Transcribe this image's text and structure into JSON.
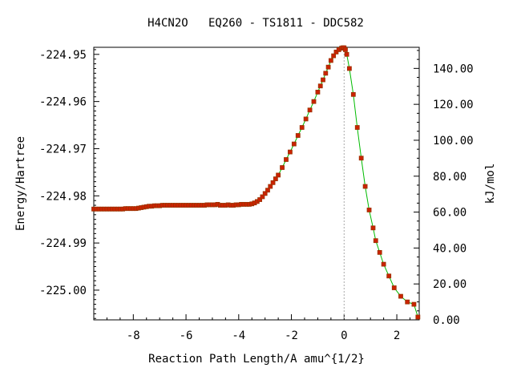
{
  "chart_data": {
    "type": "line",
    "title": "H4CN2O   EQ260 - TS1811 - DDC582",
    "xlabel": "Reaction Path Length/A amu^{1/2}",
    "ylabel_left": "Energy/Hartree",
    "ylabel_right": "kJ/mol",
    "xlim": [
      -9.5,
      2.85
    ],
    "ylim": [
      -225.0063,
      -224.9485
    ],
    "x_ticks": [
      -8,
      -6,
      -4,
      -2,
      0,
      2
    ],
    "x_tick_labels": [
      "-8",
      "-6",
      "-4",
      "-2",
      "0",
      "2"
    ],
    "y_ticks": [
      -224.95,
      -224.96,
      -224.97,
      -224.98,
      -224.99,
      -225.0
    ],
    "y_tick_labels": [
      "-224.95",
      "-224.96",
      "-224.97",
      "-224.98",
      "-224.99",
      "-225.00"
    ],
    "y2_zero_hartree": -225.0063,
    "y2_hartree_per_unit": 0.000380879,
    "y2_ticks": [
      0,
      20,
      40,
      60,
      80,
      100,
      120,
      140
    ],
    "y2_tick_labels": [
      "0.00",
      "20.00",
      "40.00",
      "60.00",
      "80.00",
      "100.00",
      "120.00",
      "140.00"
    ],
    "ts_marker_x": 0,
    "grid": false,
    "colors": {
      "line": "#00bb00",
      "marker_fill": "#cc2200",
      "marker_edge": "#993300",
      "ts_line": "#aaaaaa"
    },
    "series": [
      {
        "x": [
          -9.5,
          -9.4,
          -9.3,
          -9.2,
          -9.1,
          -9.0,
          -8.9,
          -8.8,
          -8.7,
          -8.6,
          -8.5,
          -8.4,
          -8.3,
          -8.2,
          -8.1,
          -8.0,
          -7.9,
          -7.8,
          -7.7,
          -7.6,
          -7.5,
          -7.4,
          -7.3,
          -7.2,
          -7.1,
          -7.0,
          -6.9,
          -6.8,
          -6.7,
          -6.6,
          -6.5,
          -6.4,
          -6.3,
          -6.2,
          -6.1,
          -6.0,
          -5.9,
          -5.8,
          -5.7,
          -5.6,
          -5.5,
          -5.4,
          -5.3,
          -5.2,
          -5.1,
          -5.0,
          -4.9,
          -4.8,
          -4.7,
          -4.6,
          -4.5,
          -4.4,
          -4.3,
          -4.2,
          -4.1,
          -4.0,
          -3.9,
          -3.8,
          -3.7,
          -3.6,
          -3.5,
          -3.4,
          -3.3,
          -3.2,
          -3.1,
          -3.0,
          -2.9,
          -2.8,
          -2.7,
          -2.6,
          -2.5,
          -2.35,
          -2.2,
          -2.05,
          -1.9,
          -1.75,
          -1.6,
          -1.45,
          -1.3,
          -1.15,
          -1.0,
          -0.9,
          -0.8,
          -0.7,
          -0.6,
          -0.5,
          -0.4,
          -0.3,
          -0.2,
          -0.1,
          -0.05,
          0.0,
          0.05,
          0.1,
          0.2,
          0.35,
          0.5,
          0.65,
          0.8,
          0.95,
          1.1,
          1.2,
          1.35,
          1.5,
          1.7,
          1.9,
          2.15,
          2.4,
          2.65,
          2.8
        ],
        "y": [
          -224.9828,
          -224.9828,
          -224.9828,
          -224.9828,
          -224.9828,
          -224.9828,
          -224.9828,
          -224.9828,
          -224.9828,
          -224.9828,
          -224.9828,
          -224.9828,
          -224.9827,
          -224.9827,
          -224.9827,
          -224.9827,
          -224.9827,
          -224.9826,
          -224.9825,
          -224.9824,
          -224.9823,
          -224.9822,
          -224.9822,
          -224.9821,
          -224.9821,
          -224.9821,
          -224.982,
          -224.982,
          -224.982,
          -224.982,
          -224.982,
          -224.982,
          -224.982,
          -224.982,
          -224.982,
          -224.982,
          -224.982,
          -224.982,
          -224.982,
          -224.982,
          -224.982,
          -224.982,
          -224.982,
          -224.9819,
          -224.9819,
          -224.9819,
          -224.9819,
          -224.9818,
          -224.982,
          -224.982,
          -224.982,
          -224.9819,
          -224.982,
          -224.982,
          -224.9819,
          -224.9819,
          -224.9818,
          -224.9818,
          -224.9818,
          -224.9818,
          -224.9817,
          -224.9815,
          -224.9812,
          -224.9808,
          -224.9802,
          -224.9795,
          -224.9788,
          -224.978,
          -224.9772,
          -224.9764,
          -224.9756,
          -224.974,
          -224.9723,
          -224.9707,
          -224.969,
          -224.9672,
          -224.9655,
          -224.9637,
          -224.9618,
          -224.96,
          -224.958,
          -224.9567,
          -224.9554,
          -224.954,
          -224.9527,
          -224.9513,
          -224.9503,
          -224.9495,
          -224.949,
          -224.9487,
          -224.9486,
          -224.9486,
          -224.949,
          -224.95,
          -224.953,
          -224.9585,
          -224.9655,
          -224.972,
          -224.978,
          -224.983,
          -224.9868,
          -224.9895,
          -224.992,
          -224.9945,
          -224.997,
          -224.9995,
          -225.0013,
          -225.0025,
          -225.003,
          -225.0057
        ]
      }
    ]
  }
}
